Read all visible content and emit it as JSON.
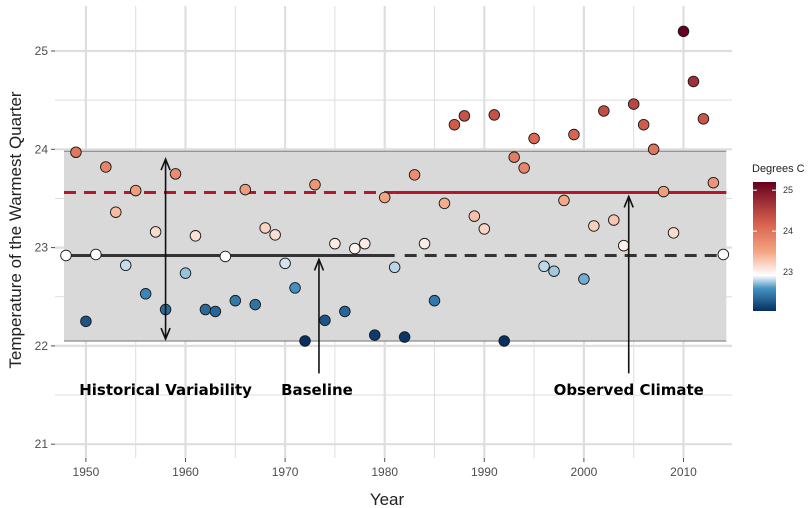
{
  "chart_data": {
    "type": "scatter",
    "xlabel": "Year",
    "ylabel": "Temperature of the Warmest Quarter",
    "xlim": [
      1948,
      2014
    ],
    "ylim": [
      20.95,
      25.4
    ],
    "xticks": [
      1950,
      1960,
      1970,
      1980,
      1990,
      2000,
      2010
    ],
    "yticks": [
      21,
      22,
      23,
      24,
      25
    ],
    "grid": true,
    "points": [
      {
        "x": 1948,
        "y": 22.92
      },
      {
        "x": 1949,
        "y": 23.97
      },
      {
        "x": 1950,
        "y": 22.25
      },
      {
        "x": 1951,
        "y": 22.93
      },
      {
        "x": 1952,
        "y": 23.82
      },
      {
        "x": 1953,
        "y": 23.36
      },
      {
        "x": 1954,
        "y": 22.82
      },
      {
        "x": 1955,
        "y": 23.58
      },
      {
        "x": 1956,
        "y": 22.53
      },
      {
        "x": 1957,
        "y": 23.16
      },
      {
        "x": 1958,
        "y": 22.37
      },
      {
        "x": 1959,
        "y": 23.75
      },
      {
        "x": 1960,
        "y": 22.74
      },
      {
        "x": 1961,
        "y": 23.12
      },
      {
        "x": 1962,
        "y": 22.37
      },
      {
        "x": 1963,
        "y": 22.35
      },
      {
        "x": 1964,
        "y": 22.91
      },
      {
        "x": 1965,
        "y": 22.46
      },
      {
        "x": 1966,
        "y": 23.59
      },
      {
        "x": 1967,
        "y": 22.42
      },
      {
        "x": 1968,
        "y": 23.2
      },
      {
        "x": 1969,
        "y": 23.13
      },
      {
        "x": 1970,
        "y": 22.84
      },
      {
        "x": 1971,
        "y": 22.59
      },
      {
        "x": 1972,
        "y": 22.05
      },
      {
        "x": 1973,
        "y": 23.64
      },
      {
        "x": 1974,
        "y": 22.26
      },
      {
        "x": 1975,
        "y": 23.04
      },
      {
        "x": 1976,
        "y": 22.35
      },
      {
        "x": 1977,
        "y": 22.99
      },
      {
        "x": 1978,
        "y": 23.04
      },
      {
        "x": 1979,
        "y": 22.11
      },
      {
        "x": 1980,
        "y": 23.51
      },
      {
        "x": 1981,
        "y": 22.8
      },
      {
        "x": 1982,
        "y": 22.09
      },
      {
        "x": 1983,
        "y": 23.74
      },
      {
        "x": 1984,
        "y": 23.04
      },
      {
        "x": 1985,
        "y": 22.46
      },
      {
        "x": 1986,
        "y": 23.45
      },
      {
        "x": 1987,
        "y": 24.25
      },
      {
        "x": 1988,
        "y": 24.34
      },
      {
        "x": 1989,
        "y": 23.32
      },
      {
        "x": 1990,
        "y": 23.19
      },
      {
        "x": 1991,
        "y": 24.35
      },
      {
        "x": 1992,
        "y": 22.05
      },
      {
        "x": 1993,
        "y": 23.92
      },
      {
        "x": 1994,
        "y": 23.81
      },
      {
        "x": 1995,
        "y": 24.11
      },
      {
        "x": 1996,
        "y": 22.81
      },
      {
        "x": 1997,
        "y": 22.76
      },
      {
        "x": 1998,
        "y": 23.48
      },
      {
        "x": 1999,
        "y": 24.15
      },
      {
        "x": 2000,
        "y": 22.68
      },
      {
        "x": 2001,
        "y": 23.22
      },
      {
        "x": 2002,
        "y": 24.39
      },
      {
        "x": 2003,
        "y": 23.28
      },
      {
        "x": 2004,
        "y": 23.02
      },
      {
        "x": 2005,
        "y": 24.46
      },
      {
        "x": 2006,
        "y": 24.25
      },
      {
        "x": 2007,
        "y": 24.0
      },
      {
        "x": 2008,
        "y": 23.57
      },
      {
        "x": 2009,
        "y": 23.15
      },
      {
        "x": 2010,
        "y": 25.2
      },
      {
        "x": 2011,
        "y": 24.69
      },
      {
        "x": 2012,
        "y": 24.31
      },
      {
        "x": 2013,
        "y": 23.66
      },
      {
        "x": 2014,
        "y": 22.93
      }
    ],
    "variability_band": {
      "ymin": 22.05,
      "ymax": 23.98
    },
    "baseline": {
      "y": 22.92,
      "solid_until": 1981
    },
    "observed_mean": {
      "y": 23.56,
      "solid_from": 1981
    },
    "annotations": [
      {
        "label": "Historical Variability",
        "x": 1958,
        "text_y": 21.55
      },
      {
        "label": "Baseline",
        "x": 1973.4,
        "text_y": 21.55
      },
      {
        "label": "Observed Climate",
        "x": 2004.5,
        "text_y": 21.55
      }
    ],
    "arrows": {
      "variability": {
        "x": 1958,
        "y_from": 22.07,
        "y_to": 23.9
      },
      "baseline": {
        "x": 1973.4,
        "y_from": 21.72,
        "y_to": 22.88
      },
      "observed": {
        "x": 2004.5,
        "y_from": 21.72,
        "y_to": 23.52
      }
    },
    "legend": {
      "title": "Degrees C",
      "ticks": [
        23,
        24,
        25
      ],
      "range": [
        22.05,
        25.2
      ],
      "position": "right"
    },
    "colors": {
      "panel_bg": "#ffffff",
      "band_fill": "#d9d9d9",
      "band_edge": "#8c8c8c",
      "grid": "#dedede",
      "baseline_line": "#333333",
      "observed_line": "#b2182b",
      "point_edge": "#1a1a1a"
    },
    "colormap": {
      "stops": [
        22.05,
        22.6,
        22.92,
        23.5,
        24.2,
        25.2
      ],
      "colors": [
        "#053061",
        "#4393c3",
        "#ffffff",
        "#f4a582",
        "#d6604d",
        "#67001f"
      ]
    }
  }
}
